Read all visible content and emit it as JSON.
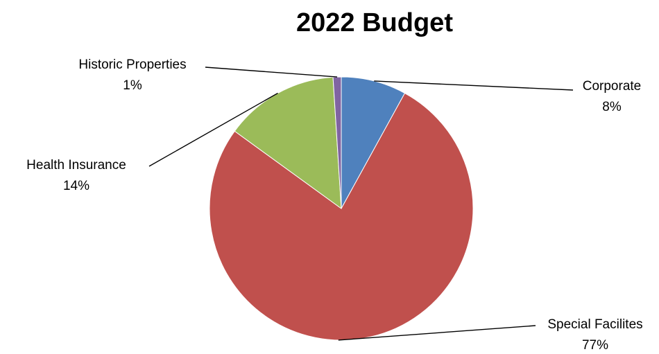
{
  "chart_data": {
    "type": "pie",
    "title": "2022 Budget",
    "start_angle": "12 o'clock",
    "direction": "clockwise",
    "slices": [
      {
        "label": "Corporate",
        "value": 8,
        "value_label": "8%",
        "color": "#4f81bd"
      },
      {
        "label": "Special Facilites",
        "value": 77,
        "value_label": "77%",
        "color": "#c0504d"
      },
      {
        "label": "Health Insurance",
        "value": 14,
        "value_label": "14%",
        "color": "#9bbb59"
      },
      {
        "label": "Historic Properties",
        "value": 1,
        "value_label": "1%",
        "color": "#8064a2"
      }
    ]
  }
}
